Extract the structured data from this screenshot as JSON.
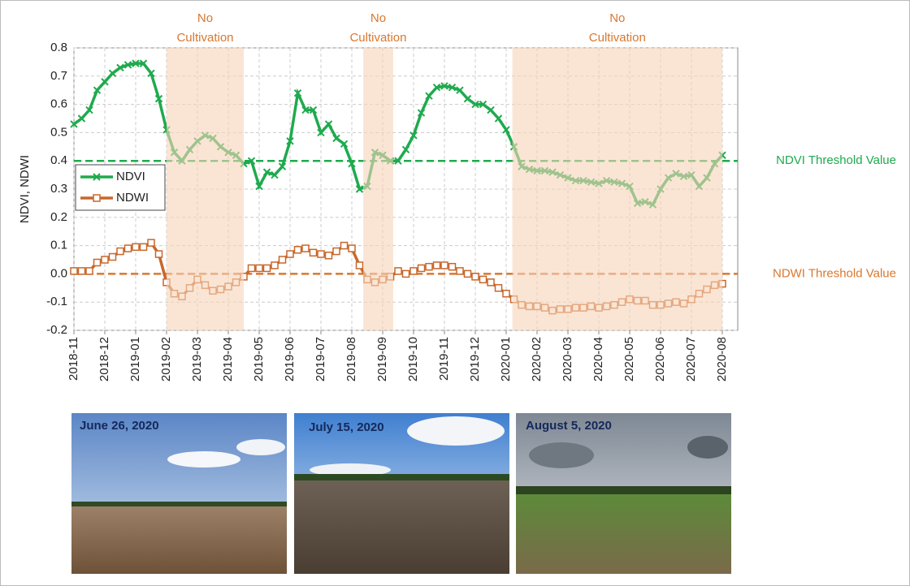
{
  "chart_data": {
    "type": "line",
    "ylabel": "NDVI, NDWI",
    "xlim": [
      0,
      21.5
    ],
    "ylim": [
      -0.2,
      0.8
    ],
    "xticks": [
      {
        "value": 0,
        "label": "2018-11"
      },
      {
        "value": 1,
        "label": "2018-12"
      },
      {
        "value": 2,
        "label": "2019-01"
      },
      {
        "value": 3,
        "label": "2019-02"
      },
      {
        "value": 4,
        "label": "2019-03"
      },
      {
        "value": 5,
        "label": "2019-04"
      },
      {
        "value": 6,
        "label": "2019-05"
      },
      {
        "value": 7,
        "label": "2019-06"
      },
      {
        "value": 8,
        "label": "2019-07"
      },
      {
        "value": 9,
        "label": "2019-08"
      },
      {
        "value": 10,
        "label": "2019-09"
      },
      {
        "value": 11,
        "label": "2019-10"
      },
      {
        "value": 12,
        "label": "2019-11"
      },
      {
        "value": 13,
        "label": "2019-12"
      },
      {
        "value": 14,
        "label": "2020-01"
      },
      {
        "value": 15,
        "label": "2020-02"
      },
      {
        "value": 16,
        "label": "2020-03"
      },
      {
        "value": 17,
        "label": "2020-04"
      },
      {
        "value": 18,
        "label": "2020-05"
      },
      {
        "value": 19,
        "label": "2020-06"
      },
      {
        "value": 20,
        "label": "2020-07"
      },
      {
        "value": 21,
        "label": "2020-08"
      }
    ],
    "yticks": [
      -0.2,
      -0.1,
      {
        "value": 0,
        "label": "0.0"
      },
      0.1,
      0.2,
      0.3,
      0.4,
      0.5,
      0.6,
      0.7,
      0.8
    ],
    "grid": true,
    "legend": "left",
    "x": [
      0,
      0.25,
      0.5,
      0.75,
      1,
      1.25,
      1.5,
      1.75,
      2,
      2.25,
      2.5,
      2.75,
      3,
      3.25,
      3.5,
      3.75,
      4,
      4.25,
      4.5,
      4.75,
      5,
      5.25,
      5.5,
      5.75,
      6,
      6.25,
      6.5,
      6.75,
      7,
      7.25,
      7.5,
      7.75,
      8,
      8.25,
      8.5,
      8.75,
      9,
      9.25,
      9.5,
      9.75,
      10,
      10.25,
      10.5,
      10.75,
      11,
      11.25,
      11.5,
      11.75,
      12,
      12.25,
      12.5,
      12.75,
      13,
      13.25,
      13.5,
      13.75,
      14,
      14.25,
      14.5,
      14.75,
      15,
      15.25,
      15.5,
      15.75,
      16,
      16.25,
      16.5,
      16.75,
      17,
      17.25,
      17.5,
      17.75,
      18,
      18.25,
      18.5,
      18.75,
      19,
      19.25,
      19.5,
      19.75,
      20,
      20.25,
      20.5,
      20.75,
      21
    ],
    "series": [
      {
        "name": "NDVI",
        "color": "#1faa4e",
        "marker": "x",
        "values": [
          0.53,
          0.55,
          0.58,
          0.65,
          0.68,
          0.71,
          0.73,
          0.74,
          0.745,
          0.745,
          0.71,
          0.62,
          0.51,
          0.43,
          0.4,
          0.44,
          0.47,
          0.49,
          0.48,
          0.45,
          0.43,
          0.42,
          0.39,
          0.4,
          0.31,
          0.36,
          0.35,
          0.38,
          0.47,
          0.64,
          0.58,
          0.58,
          0.5,
          0.53,
          0.48,
          0.46,
          0.39,
          0.3,
          0.31,
          0.43,
          0.42,
          0.4,
          0.4,
          0.44,
          0.49,
          0.57,
          0.63,
          0.66,
          0.665,
          0.66,
          0.65,
          0.62,
          0.6,
          0.6,
          0.58,
          0.55,
          0.51,
          0.45,
          0.38,
          0.37,
          0.365,
          0.365,
          0.36,
          0.35,
          0.34,
          0.33,
          0.33,
          0.325,
          0.32,
          0.33,
          0.325,
          0.32,
          0.31,
          0.25,
          0.255,
          0.245,
          0.3,
          0.34,
          0.355,
          0.345,
          0.35,
          0.31,
          0.34,
          0.39,
          0.42
        ]
      },
      {
        "name": "NDWI",
        "color": "#c8672a",
        "marker": "square",
        "values": [
          0.01,
          0.01,
          0.01,
          0.04,
          0.05,
          0.06,
          0.08,
          0.09,
          0.095,
          0.095,
          0.11,
          0.07,
          -0.03,
          -0.07,
          -0.08,
          -0.05,
          -0.02,
          -0.04,
          -0.06,
          -0.055,
          -0.045,
          -0.03,
          -0.01,
          0.02,
          0.02,
          0.02,
          0.03,
          0.05,
          0.07,
          0.085,
          0.09,
          0.075,
          0.07,
          0.065,
          0.08,
          0.1,
          0.09,
          0.03,
          -0.02,
          -0.03,
          -0.02,
          -0.01,
          0.01,
          0,
          0.01,
          0.02,
          0.025,
          0.03,
          0.03,
          0.025,
          0.01,
          0,
          -0.01,
          -0.02,
          -0.03,
          -0.05,
          -0.07,
          -0.09,
          -0.11,
          -0.115,
          -0.115,
          -0.12,
          -0.13,
          -0.125,
          -0.125,
          -0.12,
          -0.12,
          -0.115,
          -0.12,
          -0.115,
          -0.11,
          -0.1,
          -0.09,
          -0.095,
          -0.095,
          -0.11,
          -0.11,
          -0.105,
          -0.1,
          -0.105,
          -0.09,
          -0.07,
          -0.055,
          -0.04,
          -0.035
        ]
      }
    ],
    "thresholds": [
      {
        "value": 0.4,
        "label": "NDVI Threshold Value",
        "color": "#1faa4e"
      },
      {
        "value": 0,
        "label": "NDWI Threshold Value",
        "color": "#d9772e"
      }
    ],
    "shaded_regions": [
      {
        "xlim": [
          3,
          5.5
        ],
        "label": [
          "No",
          "Cultivation"
        ]
      },
      {
        "xlim": [
          9.37,
          10.34
        ],
        "label": [
          "No",
          "Cultivation"
        ]
      },
      {
        "xlim": [
          14.2,
          21
        ],
        "label": [
          "No",
          "Cultivation"
        ]
      }
    ],
    "shade_color": "#f7d3b9"
  },
  "photos": [
    {
      "caption": "June 26, 2020"
    },
    {
      "caption": "July 15, 2020"
    },
    {
      "caption": "August 5, 2020"
    }
  ]
}
